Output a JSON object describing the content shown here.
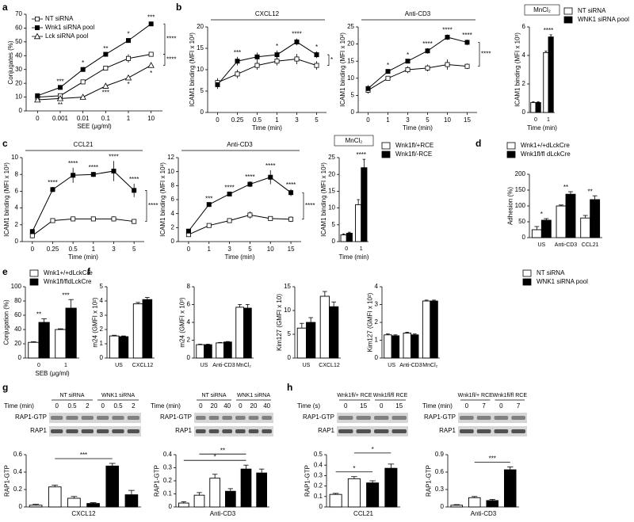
{
  "chart_data": [
    {
      "type": "line",
      "panel": "a",
      "categories": [
        "0",
        "0.001",
        "0.01",
        "0.1",
        "1",
        "10"
      ],
      "x_label": "SEE (μg/ml)",
      "y_label": "Conjugates (%)",
      "ylim": [
        0,
        70
      ],
      "yticks": [
        0,
        10,
        20,
        30,
        40,
        50,
        60,
        70
      ],
      "legend": true,
      "series": [
        {
          "name": "NT siRNA",
          "color": "#ffffff",
          "marker": "square",
          "values": [
            10,
            11,
            21,
            31,
            38,
            41
          ],
          "errors": [
            1,
            1,
            1.5,
            1.5,
            3,
            1.5
          ]
        },
        {
          "name": "Wnk1 siRNA pool",
          "color": "#000000",
          "marker": "square",
          "values": [
            11,
            17,
            30,
            41,
            51,
            63
          ],
          "errors": [
            1,
            1,
            1.5,
            1,
            1.5,
            1.5
          ],
          "annotations": [
            null,
            "***",
            "*",
            "**",
            "*",
            "***"
          ],
          "annotation_side": "above"
        },
        {
          "name": "Lck siRNA pool",
          "color": "#ffffff",
          "marker": "triangle",
          "values": [
            8,
            9,
            10,
            18,
            24,
            33
          ],
          "errors": [
            1,
            1,
            1,
            1,
            1,
            2
          ],
          "annotations": [
            null,
            "**",
            null,
            "***",
            "*",
            "*"
          ],
          "annotation_side": "below"
        }
      ],
      "brackets": [
        {
          "series": [
            0,
            1
          ],
          "text": "****"
        },
        {
          "series": [
            0,
            2
          ],
          "text": "****"
        }
      ]
    },
    {
      "type": "line",
      "panel": "b",
      "group_title": "CXCL12",
      "categories": [
        "0",
        "0.25",
        "0.5",
        "1",
        "3",
        "5"
      ],
      "x_label": "Time (min)",
      "y_label": "ICAM1 binding (MFI x 10²)",
      "ylim": [
        0,
        20
      ],
      "yticks": [
        0,
        5,
        10,
        15,
        20
      ],
      "series": [
        {
          "color": "#ffffff",
          "marker": "square",
          "values": [
            7,
            9,
            11,
            12,
            12.5,
            11
          ],
          "errors": [
            1,
            1,
            1,
            1,
            1.2,
            1
          ]
        },
        {
          "color": "#000000",
          "marker": "square",
          "values": [
            6.5,
            12,
            13,
            13.5,
            16.5,
            13.5
          ],
          "errors": [
            1,
            1,
            1,
            1,
            0.8,
            0.8
          ],
          "annotations": [
            null,
            "***",
            null,
            "*",
            "****",
            "*"
          ],
          "annotation_side": "above"
        }
      ],
      "brackets": [
        {
          "series": [
            0,
            1
          ],
          "text": "*"
        }
      ]
    },
    {
      "type": "line",
      "group_title": "Anti-CD3",
      "categories": [
        "0",
        "1",
        "3",
        "5",
        "10",
        "15"
      ],
      "x_label": "Time (min)",
      "y_label": "ICAM1 binding (MFI x 10²)",
      "ylim": [
        0,
        25
      ],
      "yticks": [
        0,
        5,
        10,
        15,
        20,
        25
      ],
      "series": [
        {
          "color": "#ffffff",
          "marker": "square",
          "values": [
            6.5,
            10,
            12.5,
            13,
            14,
            13.5
          ],
          "errors": [
            1,
            0.5,
            1,
            1,
            1.5,
            0.8
          ]
        },
        {
          "color": "#000000",
          "marker": "square",
          "values": [
            7,
            12,
            15,
            18,
            22,
            20.5
          ],
          "errors": [
            1,
            0.5,
            0.5,
            0.8,
            0.8,
            0.8
          ],
          "annotations": [
            null,
            "*",
            "*",
            "****",
            "****",
            "****"
          ],
          "annotation_side": "above"
        }
      ],
      "brackets": [
        {
          "series": [
            0,
            1
          ],
          "text": "****"
        }
      ]
    },
    {
      "type": "bar",
      "title": "MnCl₂",
      "categories": [
        "0",
        "1"
      ],
      "x_label": "Time (min)",
      "y_label": "ICAM1 binding (MFI x 10³)",
      "ylim": [
        0,
        6
      ],
      "yticks": [
        0,
        2,
        4,
        6
      ],
      "legend": true,
      "series": [
        {
          "name": "NT siRNA",
          "color": "#ffffff",
          "values": [
            0.7,
            4.2
          ],
          "errors": [
            0.05,
            0.1
          ]
        },
        {
          "name": "WNK1 siRNA pool",
          "color": "#000000",
          "values": [
            0.7,
            5.3
          ],
          "errors": [
            0.05,
            0.15
          ]
        }
      ],
      "annotations": [
        null,
        "****"
      ]
    },
    {
      "type": "line",
      "panel": "c",
      "group_title": "CCL21",
      "categories": [
        "0",
        "0.25",
        "0.5",
        "1",
        "3",
        "5"
      ],
      "x_label": "Time (min)",
      "y_label": "ICAM1 binding (MFI x 10³)",
      "ylim": [
        0,
        10
      ],
      "yticks": [
        0,
        2,
        4,
        6,
        8,
        10
      ],
      "series": [
        {
          "color": "#ffffff",
          "marker": "square",
          "values": [
            0.7,
            2.5,
            2.7,
            2.7,
            2.7,
            2.4
          ],
          "errors": [
            0.3,
            0.2,
            0.2,
            0.2,
            0.3,
            0.3
          ]
        },
        {
          "color": "#000000",
          "marker": "square",
          "values": [
            1.2,
            6.2,
            7.9,
            8,
            8.4,
            6.1
          ],
          "errors": [
            0.3,
            0.3,
            0.9,
            0.3,
            1.2,
            0.8
          ],
          "annotations": [
            null,
            "****",
            "****",
            "****",
            "****",
            "****"
          ],
          "annotation_side": "above"
        }
      ],
      "brackets": [
        {
          "series": [
            0,
            1
          ],
          "text": "****"
        }
      ]
    },
    {
      "type": "line",
      "group_title": "Anti-CD3",
      "categories": [
        "0",
        "1",
        "3",
        "5",
        "10",
        "15"
      ],
      "x_label": "Time (min)",
      "y_label": "ICAM1 binding (MFI x 10³)",
      "ylim": [
        0,
        12
      ],
      "yticks": [
        0,
        2,
        4,
        6,
        8,
        10,
        12
      ],
      "series": [
        {
          "color": "#ffffff",
          "marker": "square",
          "values": [
            1,
            2.3,
            3,
            3.8,
            3.3,
            3.2
          ],
          "errors": [
            0.2,
            0.2,
            0.3,
            0.5,
            0.3,
            0.4
          ]
        },
        {
          "color": "#000000",
          "marker": "square",
          "values": [
            1.5,
            5.3,
            6.8,
            8.2,
            9.2,
            7
          ],
          "errors": [
            0.3,
            0.2,
            0.3,
            0.4,
            1,
            0.5
          ],
          "annotations": [
            null,
            "***",
            "****",
            "****",
            "****",
            "****"
          ],
          "annotation_side": "above"
        }
      ],
      "brackets": [
        {
          "series": [
            0,
            1
          ],
          "text": "****"
        }
      ]
    },
    {
      "type": "bar",
      "title": "MnCl₂",
      "categories": [
        "0",
        "1"
      ],
      "x_label": "Time (min)",
      "y_label": "ICAM1 binding (MFI x 10³)",
      "ylim": [
        0,
        25
      ],
      "yticks": [
        0,
        5,
        10,
        15,
        20,
        25
      ],
      "legend": true,
      "series": [
        {
          "name": "Wnk1fl/+RCE",
          "color": "#ffffff",
          "values": [
            2,
            11
          ],
          "errors": [
            0.3,
            1.5
          ]
        },
        {
          "name": "Wnk1fl/-RCE",
          "color": "#000000",
          "values": [
            2.5,
            22
          ],
          "errors": [
            0.3,
            2.5
          ]
        }
      ],
      "annotations": [
        null,
        "****"
      ]
    },
    {
      "type": "bar",
      "panel": "d",
      "categories": [
        "US",
        "Anti-CD3",
        "CCL21"
      ],
      "y_label": "Adhesion (%)",
      "ylim": [
        0,
        200
      ],
      "yticks": [
        0,
        50,
        100,
        150,
        200
      ],
      "legend": true,
      "series": [
        {
          "name": "Wnk1+/+dLckCre",
          "color": "#ffffff",
          "values": [
            25,
            100,
            62
          ],
          "errors": [
            10,
            3,
            8
          ]
        },
        {
          "name": "Wnk1fl/fl dLckCre",
          "color": "#000000",
          "values": [
            55,
            137,
            120
          ],
          "errors": [
            5,
            8,
            12
          ]
        }
      ],
      "annotations": [
        "*",
        "**",
        "**"
      ]
    },
    {
      "type": "bar",
      "panel": "e",
      "categories": [
        "0",
        "1"
      ],
      "x_label": "SEB (μg/ml)",
      "y_label": "Conjugation (%)",
      "ylim": [
        0,
        100
      ],
      "yticks": [
        0,
        20,
        40,
        60,
        80,
        100
      ],
      "legend": true,
      "series": [
        {
          "name": "Wnk1+/+dLckCre",
          "color": "#ffffff",
          "values": [
            22,
            40
          ],
          "errors": [
            1,
            1
          ]
        },
        {
          "name": "Wnk1fl/fldLckCre",
          "color": "#000000",
          "values": [
            50,
            70
          ],
          "errors": [
            5,
            12
          ]
        }
      ],
      "annotations": [
        "**",
        "***"
      ]
    },
    {
      "type": "bar",
      "panel": "f",
      "categories": [
        "US",
        "CXCL12"
      ],
      "y_label": "m24 (GMFI x 10²)",
      "ylim": [
        0,
        5
      ],
      "yticks": [
        0,
        1,
        2,
        3,
        4,
        5
      ],
      "series": [
        {
          "color": "#ffffff",
          "values": [
            1.55,
            3.8
          ],
          "errors": [
            0.05,
            0.1
          ]
        },
        {
          "color": "#000000",
          "values": [
            1.5,
            4.1
          ],
          "errors": [
            0.05,
            0.15
          ]
        }
      ]
    },
    {
      "type": "bar",
      "categories": [
        "US",
        "Anti-CD3",
        "MnCl₂"
      ],
      "y_label": "m24 (GMFI x 10³)",
      "ylim": [
        0,
        8
      ],
      "yticks": [
        0,
        2,
        4,
        6,
        8
      ],
      "series": [
        {
          "color": "#ffffff",
          "values": [
            1.5,
            1.7,
            5.7
          ],
          "errors": [
            0.05,
            0.05,
            0.3
          ]
        },
        {
          "color": "#000000",
          "values": [
            1.5,
            1.8,
            5.6
          ],
          "errors": [
            0.05,
            0.05,
            0.4
          ]
        }
      ]
    },
    {
      "type": "bar",
      "categories": [
        "US",
        "CXCL12"
      ],
      "y_label": "Kim127 (GMFI x 10)",
      "ylim": [
        0,
        15
      ],
      "yticks": [
        0,
        5,
        10,
        15
      ],
      "series": [
        {
          "color": "#ffffff",
          "values": [
            6.3,
            13
          ],
          "errors": [
            1,
            1
          ]
        },
        {
          "color": "#000000",
          "values": [
            7.5,
            10.8
          ],
          "errors": [
            1,
            1
          ]
        }
      ]
    },
    {
      "type": "bar",
      "categories": [
        "US",
        "Anti-CD3",
        "MnCl₂"
      ],
      "y_label": "Kim127 (GMFI x 10²)",
      "ylim": [
        0,
        4
      ],
      "yticks": [
        0,
        1,
        2,
        3,
        4
      ],
      "legend": true,
      "series": [
        {
          "name": "NT siRNA",
          "color": "#ffffff",
          "values": [
            1.3,
            1.4,
            3.2
          ],
          "errors": [
            0.05,
            0.05,
            0.05
          ]
        },
        {
          "name": "WNK1 siRNA pool",
          "color": "#000000",
          "values": [
            1.25,
            1.3,
            3.2
          ],
          "errors": [
            0.05,
            0.05,
            0.05
          ]
        }
      ]
    },
    {
      "type": "bar",
      "panel": "g",
      "arrangement": "sequential",
      "x_label": "CXCL12",
      "y_label": "RAP1-GTP",
      "ylim": [
        0,
        0.6
      ],
      "yticks": [
        0,
        0.2,
        0.4,
        0.6
      ],
      "series": [
        {
          "color": "#ffffff",
          "values": [
            0.02,
            0.23,
            0.1
          ],
          "errors": [
            0.01,
            0.02,
            0.02
          ]
        },
        {
          "color": "#000000",
          "values": [
            0.04,
            0.47,
            0.14
          ],
          "errors": [
            0.01,
            0.03,
            0.05
          ]
        }
      ],
      "comparisons": [
        {
          "from": 1,
          "to": 4,
          "text": "***"
        }
      ],
      "blot": {
        "time_label": "Time (min)",
        "groups": [
          "NT siRNA",
          "WNK1 siRNA"
        ],
        "times": [
          "0",
          "0.5",
          "2",
          "0",
          "0.5",
          "2"
        ],
        "rows": [
          "RAP1-GTP",
          "RAP1"
        ]
      }
    },
    {
      "type": "bar",
      "arrangement": "sequential",
      "x_label": "Anti-CD3",
      "y_label": "RAP1-GTP",
      "ylim": [
        0,
        0.4
      ],
      "yticks": [
        0,
        0.1,
        0.2,
        0.3,
        0.4
      ],
      "series": [
        {
          "color": "#ffffff",
          "values": [
            0.03,
            0.09,
            0.22
          ],
          "errors": [
            0.01,
            0.02,
            0.03
          ]
        },
        {
          "color": "#000000",
          "values": [
            0.12,
            0.29,
            0.26
          ],
          "errors": [
            0.02,
            0.03,
            0.03
          ]
        }
      ],
      "comparisons": [
        {
          "from": 0,
          "to": 4,
          "text": "*"
        },
        {
          "from": 1,
          "to": 4,
          "text": "**"
        }
      ],
      "blot": {
        "time_label": "Time (min)",
        "groups": [
          "NT siRNA",
          "WNK1 siRNA"
        ],
        "times": [
          "0",
          "20",
          "40",
          "0",
          "20",
          "40"
        ],
        "rows": [
          "RAP1-GTP",
          "RAP1"
        ]
      }
    },
    {
      "type": "bar",
      "panel": "h",
      "arrangement": "sequential",
      "x_label": "CCL21",
      "y_label": "RAP1-GTP",
      "ylim": [
        0,
        0.5
      ],
      "yticks": [
        0,
        0.1,
        0.2,
        0.3,
        0.4,
        0.5
      ],
      "series": [
        {
          "color": "#ffffff",
          "values": [
            0.12,
            0.27
          ],
          "errors": [
            0.01,
            0.02
          ]
        },
        {
          "color": "#000000",
          "values": [
            0.23,
            0.37
          ],
          "errors": [
            0.02,
            0.04
          ]
        }
      ],
      "comparisons": [
        {
          "from": 0,
          "to": 2,
          "text": "*"
        },
        {
          "from": 1,
          "to": 3,
          "text": "*"
        }
      ],
      "blot": {
        "time_label": "Time (s)",
        "groups": [
          "Wnk1fl/+ RCE",
          "Wnk1fl/fl RCE"
        ],
        "times": [
          "0",
          "15",
          "0",
          "15"
        ],
        "rows": [
          "RAP1-GTP",
          "RAP1"
        ]
      }
    },
    {
      "type": "bar",
      "arrangement": "sequential",
      "x_label": "Anti-CD3",
      "y_label": "RAP1-GTP",
      "ylim": [
        0,
        0.9
      ],
      "yticks": [
        0,
        0.3,
        0.6,
        0.9
      ],
      "series": [
        {
          "color": "#ffffff",
          "values": [
            0.03,
            0.16
          ],
          "errors": [
            0.01,
            0.02
          ]
        },
        {
          "color": "#000000",
          "values": [
            0.11,
            0.64
          ],
          "errors": [
            0.02,
            0.05
          ]
        }
      ],
      "comparisons": [
        {
          "from": 1,
          "to": 3,
          "text": "***"
        }
      ],
      "blot": {
        "time_label": "Time (min)",
        "groups": [
          "Wnk1fl/+ RCE",
          "Wnk1fl/fl RCE"
        ],
        "times": [
          "0",
          "7",
          "0",
          "7"
        ],
        "rows": [
          "RAP1-GTP",
          "RAP1"
        ]
      }
    }
  ]
}
